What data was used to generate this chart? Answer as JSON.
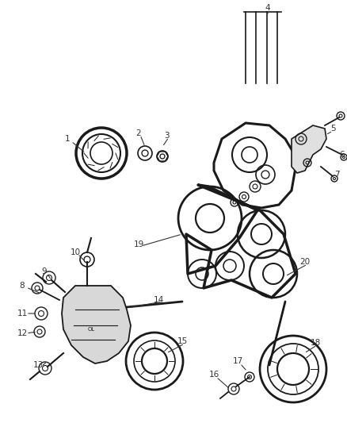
{
  "bg_color": "#ffffff",
  "line_color": "#1a1a1a",
  "label_color": "#333333",
  "label_fontsize": 7.5,
  "fig_w": 4.38,
  "fig_h": 5.33,
  "dpi": 100
}
